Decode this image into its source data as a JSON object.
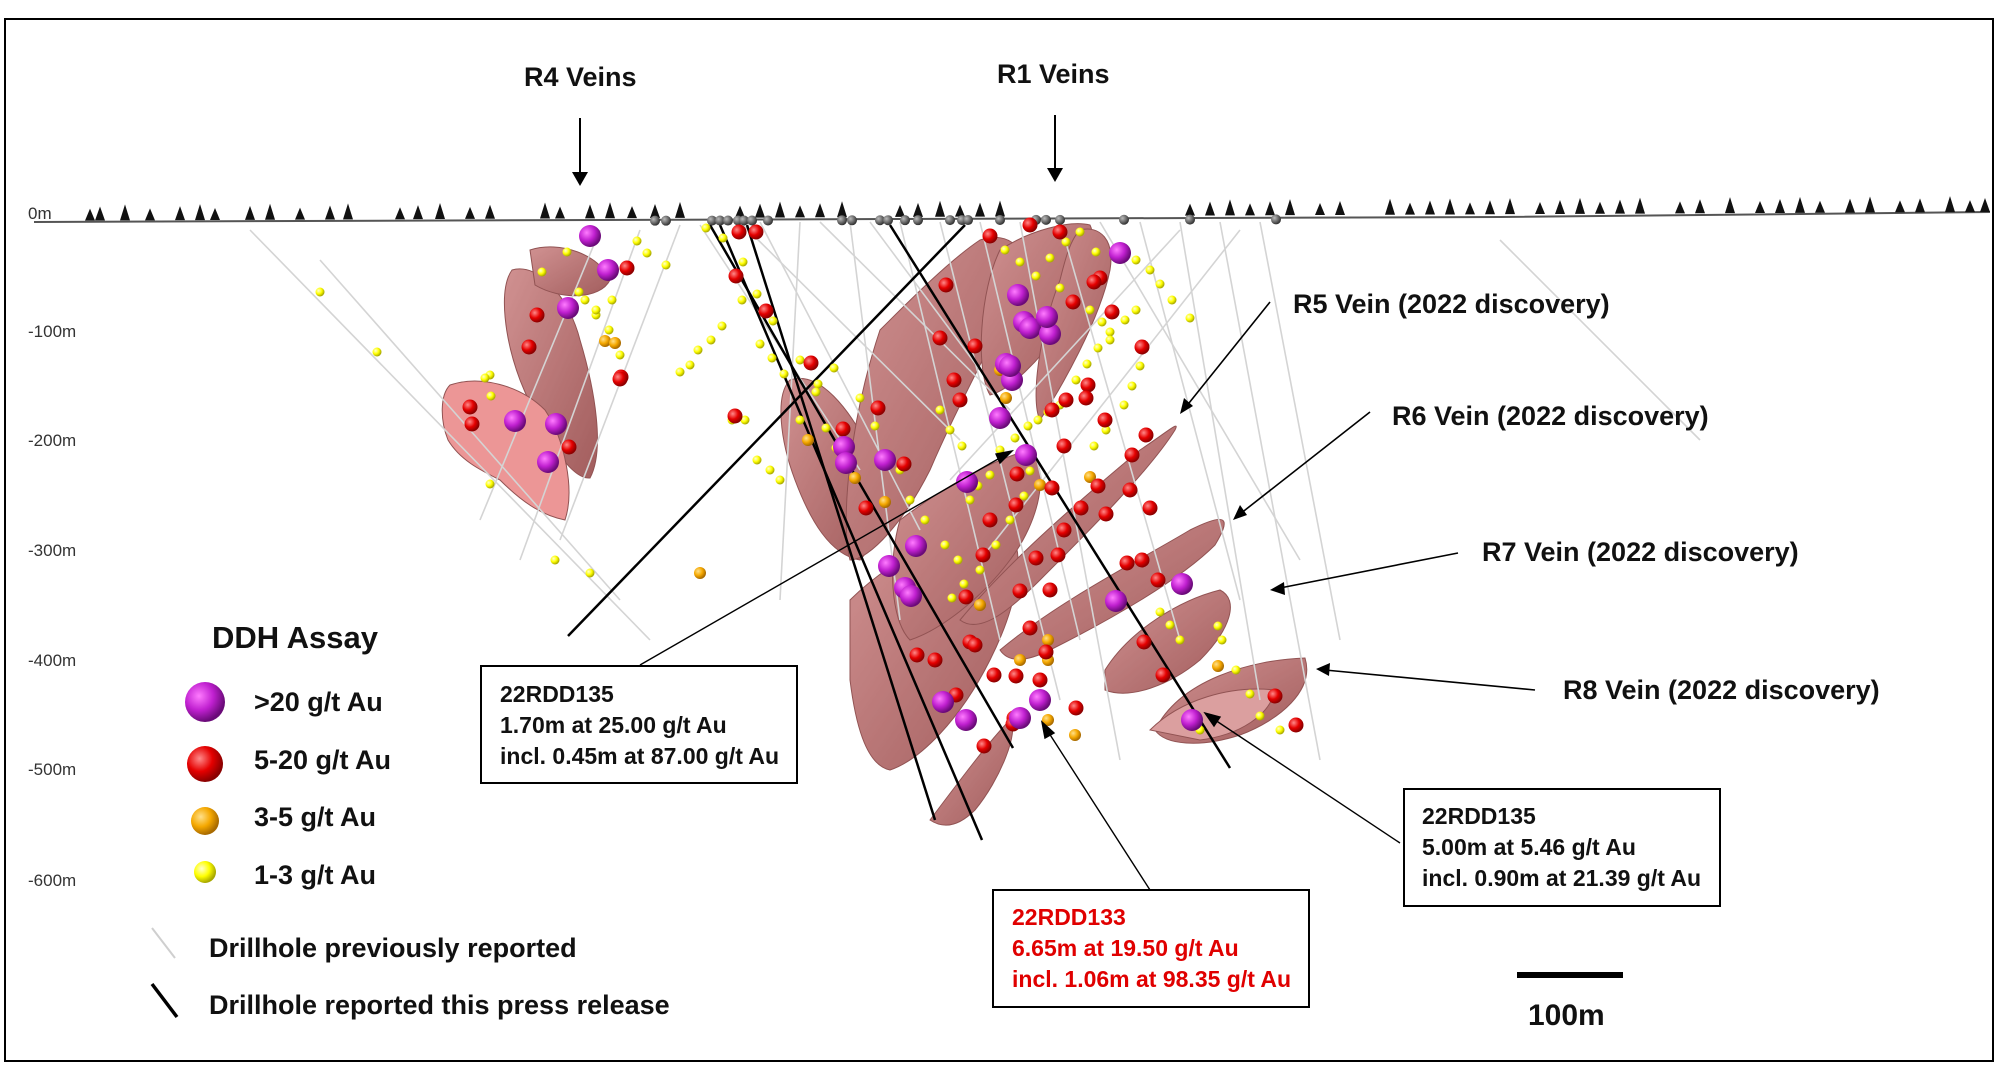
{
  "depth_labels": [
    "0m",
    "-100m",
    "-200m",
    "-300m",
    "-400m",
    "-500m",
    "-600m"
  ],
  "veins": [
    {
      "label": "R4 Veins"
    },
    {
      "label": "R1 Veins"
    },
    {
      "label": "R5 Vein (2022 discovery)"
    },
    {
      "label": "R6 Vein (2022 discovery)"
    },
    {
      "label": "R7 Vein (2022 discovery)"
    },
    {
      "label": "R8 Vein (2022 discovery)"
    }
  ],
  "legend": {
    "title": "DDH Assay",
    "items": [
      {
        "label": ">20 g/t Au",
        "color": "#7b2fa8"
      },
      {
        "label": "5-20 g/t Au",
        "color": "#e8000b"
      },
      {
        "label": "3-5 g/t Au",
        "color": "#f5a800"
      },
      {
        "label": "1-3 g/t Au",
        "color": "#ffff00"
      }
    ],
    "lines": [
      {
        "label": "Drillhole previously reported",
        "color": "#cfcfcf"
      },
      {
        "label": "Drillhole reported this press release",
        "color": "#000000"
      }
    ]
  },
  "callouts": [
    {
      "hole": "22RDD135",
      "line1": "1.70m at 25.00 g/t Au",
      "line2": "incl. 0.45m at 87.00 g/t Au",
      "color": "#111111"
    },
    {
      "hole": "22RDD133",
      "line1": "6.65m at 19.50 g/t Au",
      "line2": "incl. 1.06m at 98.35 g/t Au",
      "color": "#e00000"
    },
    {
      "hole": "22RDD135",
      "line1": "5.00m at 5.46 g/t Au",
      "line2": "incl. 0.90m at 21.39 g/t Au",
      "color": "#111111"
    }
  ],
  "scale_bar": {
    "label": "100m"
  },
  "colors": {
    "vein_fill": "#b45a5a",
    "vein_light": "#e07070",
    "ground": "#555555"
  }
}
